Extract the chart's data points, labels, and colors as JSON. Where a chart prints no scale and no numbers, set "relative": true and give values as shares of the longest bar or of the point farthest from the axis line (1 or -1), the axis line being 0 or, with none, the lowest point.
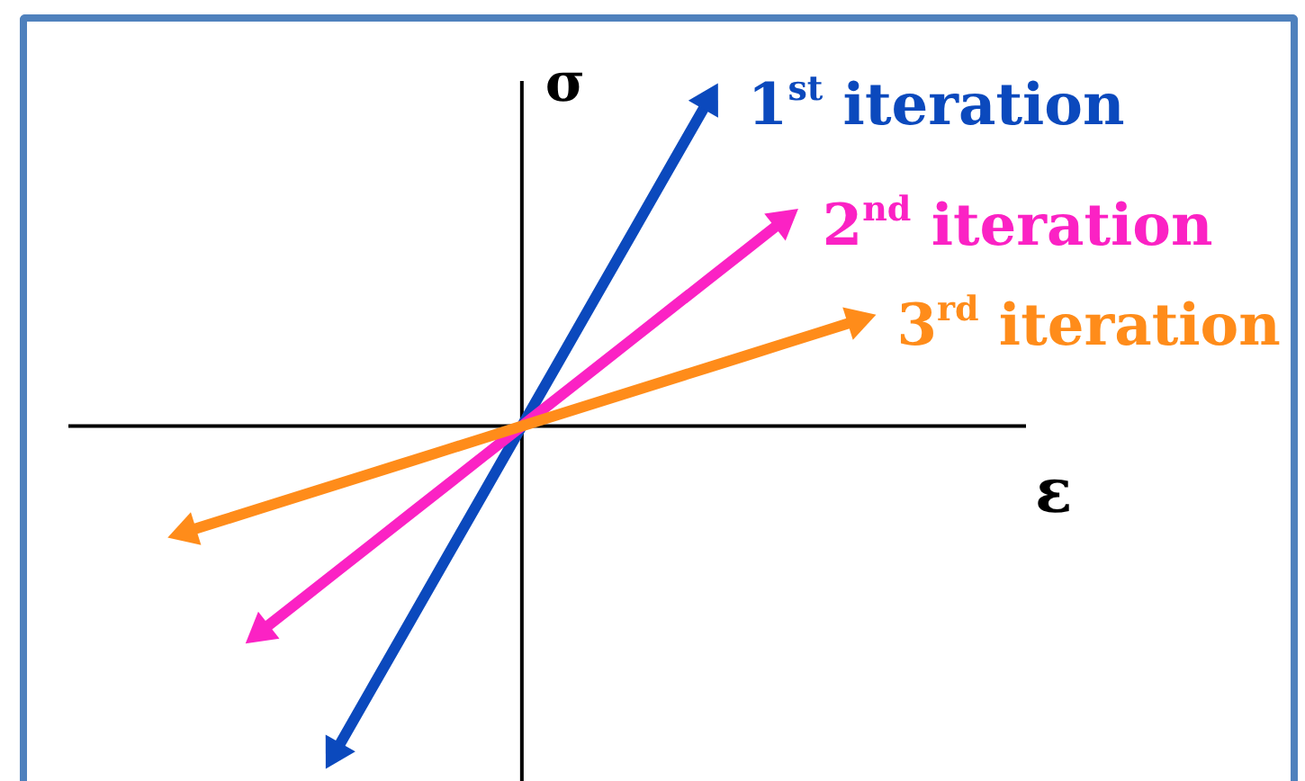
{
  "chart_data": {
    "type": "line",
    "relative": true,
    "xlabel": "ε",
    "ylabel": "σ",
    "legend": "top right",
    "categories": [
      null,
      null,
      null,
      null,
      null,
      null,
      null,
      null,
      null,
      null,
      null,
      null,
      null,
      null,
      null,
      null,
      null,
      null,
      null,
      null,
      null,
      null,
      null,
      null,
      null,
      null
    ],
    "series": [
      {
        "name": "1$^{st}$ iteration",
        "color": "#0b49bd",
        "values": [
          null,
          null,
          null,
          null,
          null,
          null,
          null,
          -1,
          -0.8,
          -0.6,
          -0.4,
          -0.2,
          0,
          0.2,
          0.4,
          0.6,
          0.8,
          1,
          null,
          null,
          null,
          null,
          null,
          null,
          null,
          null
        ]
      },
      {
        "name": "2$^{nd}$ iteration",
        "color": "#fb22c4",
        "values": [
          null,
          null,
          null,
          null,
          null,
          -0.63,
          -0.54,
          -0.45,
          -0.36,
          -0.27,
          -0.18,
          -0.09,
          0,
          0.09,
          0.18,
          0.27,
          0.36,
          0.45,
          0.54,
          0.63,
          null,
          null,
          null,
          null,
          null,
          null
        ]
      },
      {
        "name": "3$^{rd}$ iteration",
        "color": "#ff8c1a",
        "values": [
          null,
          null,
          null,
          -0.324,
          -0.288,
          -0.252,
          -0.216,
          -0.18,
          -0.144,
          -0.108,
          -0.072,
          -0.036,
          0,
          0.036,
          0.072,
          0.108,
          0.144,
          0.18,
          0.216,
          0.252,
          0.288,
          0.324,
          null,
          null,
          null,
          null
        ]
      }
    ]
  }
}
